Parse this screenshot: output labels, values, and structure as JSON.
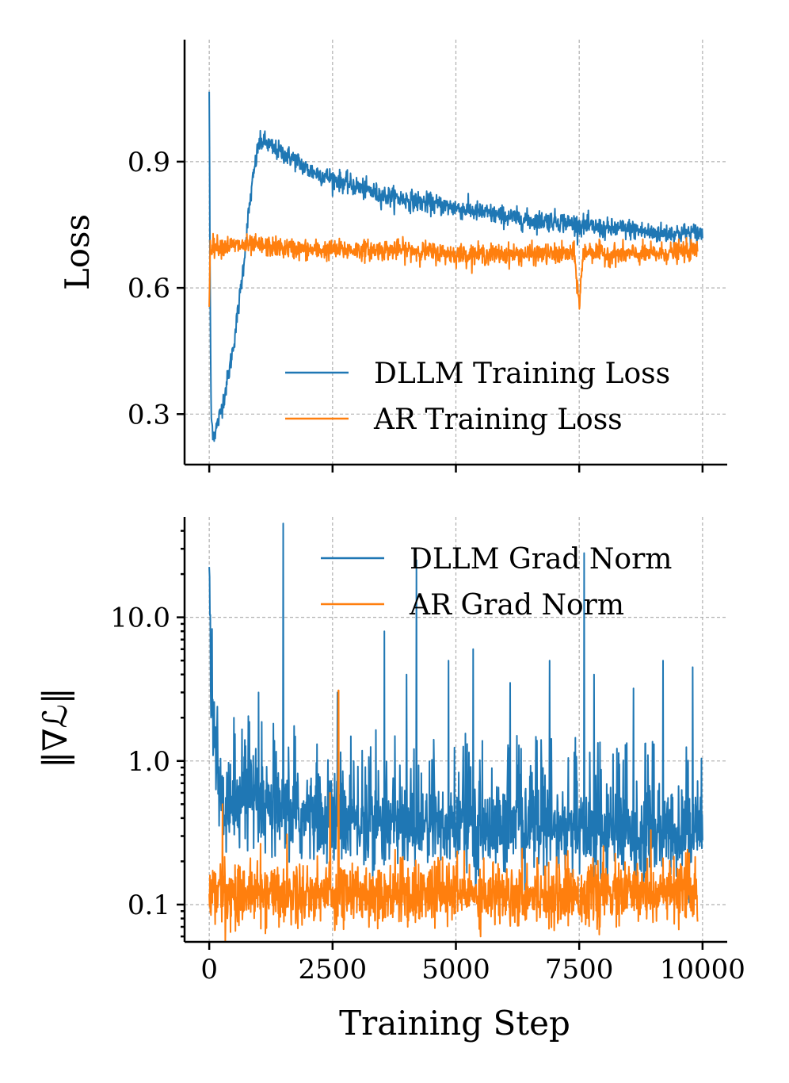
{
  "chart_data": [
    {
      "type": "line",
      "id": "loss-panel",
      "ylabel": "Loss",
      "xlabel": "",
      "xlim": [
        -500,
        10500
      ],
      "ylim": [
        0.18,
        1.19
      ],
      "xticks": [
        0,
        2500,
        5000,
        7500,
        10000
      ],
      "xtick_labels_visible": false,
      "yticks": [
        0.3,
        0.6,
        0.9
      ],
      "ytick_labels": [
        "0.3",
        "0.6",
        "0.9"
      ],
      "grid": true,
      "legend": "lower-right",
      "series": [
        {
          "name": "DLLM Training Loss",
          "color": "#1f77b4",
          "x": [
            0,
            20,
            40,
            60,
            100,
            150,
            200,
            300,
            400,
            500,
            600,
            700,
            800,
            900,
            1000,
            1100,
            1300,
            1500,
            1800,
            2000,
            2500,
            3000,
            3500,
            4000,
            4500,
            5000,
            5500,
            6000,
            6500,
            7000,
            7500,
            8000,
            8500,
            9000,
            9500,
            10000
          ],
          "y": [
            1.07,
            0.55,
            0.29,
            0.27,
            0.25,
            0.27,
            0.29,
            0.34,
            0.4,
            0.47,
            0.56,
            0.66,
            0.78,
            0.87,
            0.94,
            0.95,
            0.93,
            0.92,
            0.9,
            0.88,
            0.86,
            0.84,
            0.82,
            0.81,
            0.8,
            0.79,
            0.78,
            0.77,
            0.76,
            0.76,
            0.75,
            0.74,
            0.74,
            0.73,
            0.73,
            0.73
          ],
          "noise": 0.012
        },
        {
          "name": "AR Training Loss",
          "color": "#ff7f0e",
          "x": [
            0,
            20,
            50,
            100,
            1000,
            2000,
            3000,
            4000,
            5000,
            6000,
            7000,
            7400,
            7500,
            7580,
            7700,
            8000,
            9000,
            9900
          ],
          "y": [
            0.56,
            0.7,
            0.7,
            0.7,
            0.7,
            0.69,
            0.69,
            0.69,
            0.68,
            0.68,
            0.68,
            0.68,
            0.56,
            0.68,
            0.69,
            0.68,
            0.68,
            0.69
          ],
          "noise": 0.012
        }
      ]
    },
    {
      "type": "line",
      "id": "gradnorm-panel",
      "ylabel": "‖∇ℒ‖",
      "xlabel": "Training Step",
      "xlim": [
        -500,
        10500
      ],
      "yscale": "log",
      "ylim": [
        0.055,
        50
      ],
      "xticks": [
        0,
        2500,
        5000,
        7500,
        10000
      ],
      "xtick_labels": [
        "0",
        "2500",
        "5000",
        "7500",
        "10000"
      ],
      "yticks": [
        0.1,
        1.0,
        10.0
      ],
      "ytick_labels": [
        "0.1",
        "1.0",
        "10.0"
      ],
      "grid": true,
      "legend": "upper-right",
      "series": [
        {
          "name": "DLLM Grad Norm",
          "color": "#1f77b4",
          "x": [
            0,
            30,
            100,
            200,
            300,
            500,
            700,
            900,
            1500,
            2000,
            3000,
            4000,
            5000,
            6000,
            7000,
            8000,
            9000,
            10000
          ],
          "y": [
            22,
            3,
            1.3,
            0.6,
            0.45,
            0.4,
            0.5,
            0.45,
            0.42,
            0.4,
            0.38,
            0.36,
            0.35,
            0.34,
            0.33,
            0.32,
            0.31,
            0.3
          ],
          "spikes": [
            [
              1500,
              45
            ],
            [
              4200,
              25
            ],
            [
              7600,
              28
            ],
            [
              3550,
              8
            ],
            [
              4850,
              5
            ],
            [
              5350,
              6
            ],
            [
              6900,
              5
            ],
            [
              7800,
              4
            ],
            [
              9200,
              5
            ],
            [
              9800,
              4.5
            ],
            [
              2600,
              3
            ],
            [
              4000,
              4
            ],
            [
              6100,
              3.5
            ],
            [
              8600,
              3.2
            ],
            [
              500,
              2
            ],
            [
              1000,
              3
            ]
          ],
          "noise": 0.35
        },
        {
          "name": "AR Grad Norm",
          "color": "#ff7f0e",
          "x": [
            0,
            100,
            1000,
            2000,
            3000,
            4000,
            5000,
            6000,
            7000,
            8000,
            9000,
            9900
          ],
          "y": [
            0.12,
            0.12,
            0.12,
            0.12,
            0.12,
            0.12,
            0.12,
            0.12,
            0.12,
            0.12,
            0.12,
            0.12
          ],
          "spikes": [
            [
              2620,
              3.1
            ],
            [
              2450,
              0.6
            ],
            [
              270,
              0.5
            ],
            [
              8950,
              0.33
            ]
          ],
          "noise": 0.25
        }
      ]
    }
  ]
}
